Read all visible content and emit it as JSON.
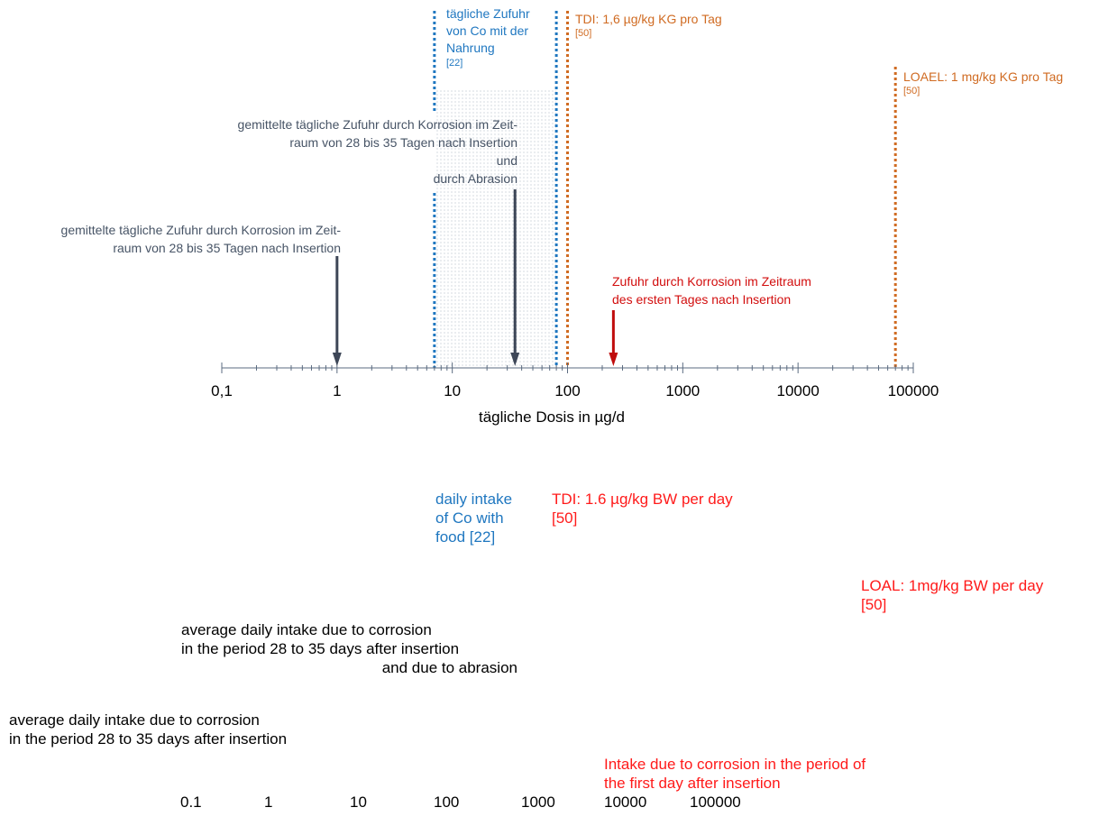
{
  "colors": {
    "dark_arrow": "#3d4657",
    "red_arrow": "#c00d0d",
    "blue": "#1f77c0",
    "orange": "#d06b22",
    "axis": "#5b6b80"
  },
  "german": {
    "food_intake_lines": [
      "tägliche Zufuhr",
      "von Co mit der",
      "Nahrung"
    ],
    "food_intake_ref": "[22]",
    "tdi": "TDI: 1,6 µg/kg KG pro Tag",
    "tdi_ref": "[50]",
    "loael": "LOAEL: 1 mg/kg KG pro Tag",
    "loael_ref": "[50]",
    "corrosion_abrasion_lines": [
      "gemittelte tägliche Zufuhr durch Korrosion im Zeit-",
      "raum von 28 bis 35 Tagen nach Insertion",
      "und",
      "durch Abrasion"
    ],
    "corrosion_lines": [
      "gemittelte tägliche Zufuhr durch Korrosion im Zeit-",
      "raum von 28 bis 35 Tagen nach Insertion"
    ],
    "first_day_lines": [
      "Zufuhr durch Korrosion im Zeitraum",
      "des ersten Tages nach Insertion"
    ],
    "axis_title": "tägliche Dosis in µg/d"
  },
  "chart_data": {
    "type": "scatter",
    "xlabel": "tägliche Dosis in µg/d",
    "xscale": "log",
    "xlim": [
      0.1,
      100000
    ],
    "tick_labels": [
      "0,1",
      "1",
      "10",
      "100",
      "1000",
      "10000",
      "100000"
    ],
    "markers": [
      {
        "label": "gemittelte tägliche Zufuhr durch Korrosion im Zeitraum von 28 bis 35 Tagen nach Insertion",
        "x": 1,
        "kind": "arrow"
      },
      {
        "label": "gemittelte tägliche Zufuhr durch Korrosion im Zeitraum von 28 bis 35 Tagen nach Insertion und durch Abrasion",
        "x": 35,
        "kind": "arrow"
      },
      {
        "label": "Zufuhr durch Korrosion im Zeitraum des ersten Tages nach Insertion",
        "x": 250,
        "kind": "arrow"
      },
      {
        "label": "tägliche Zufuhr von Co mit der Nahrung",
        "x_range": [
          7,
          80
        ],
        "kind": "band"
      },
      {
        "label": "TDI: 1,6 µg/kg KG pro Tag",
        "x": 100,
        "kind": "line"
      },
      {
        "label": "LOAEL: 1 mg/kg KG pro Tag",
        "x": 70000,
        "kind": "line"
      }
    ]
  },
  "english": {
    "food_intake_lines": [
      "daily intake",
      "of Co with",
      "food [22]"
    ],
    "tdi_lines": [
      "TDI: 1.6 µg/kg BW per day",
      "[50]"
    ],
    "loal_lines": [
      "LOAL: 1mg/kg BW per day",
      "[50]"
    ],
    "corrosion_abrasion_lines": [
      "average daily intake due to corrosion",
      "in the period 28 to 35 days after insertion",
      "and due to abrasion"
    ],
    "corrosion_lines": [
      "average daily intake due to corrosion",
      "in the period 28 to 35 days after insertion"
    ],
    "first_day_lines": [
      "Intake due to corrosion in the period of",
      "the first day after insertion"
    ],
    "tick_labels": [
      "0.1",
      "1",
      "10",
      "100",
      "1000",
      "10000",
      "100000"
    ]
  }
}
